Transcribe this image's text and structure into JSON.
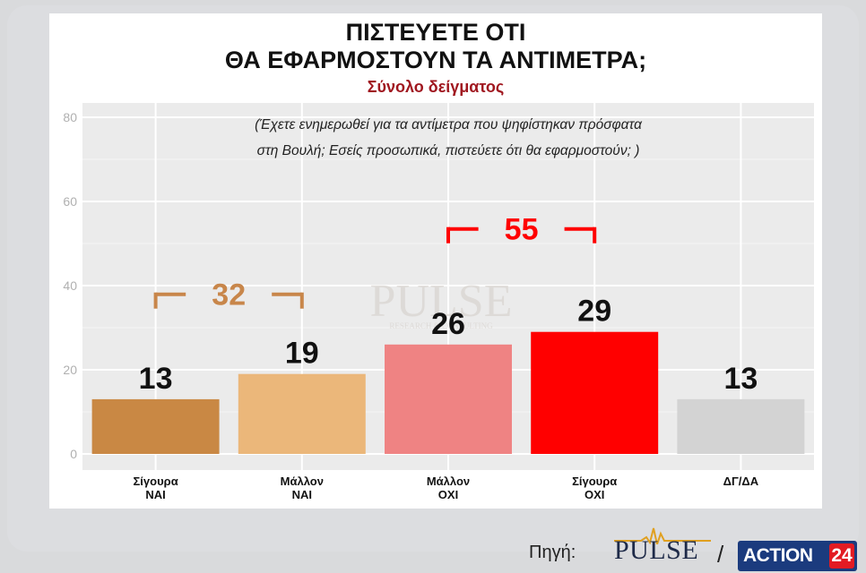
{
  "header": {
    "title_line1": "ΠΙΣΤΕΥΕΤΕ ΟΤΙ",
    "title_line2": "ΘΑ ΕΦΑΡΜΟΣΤΟΥΝ ΤΑ ΑΝΤΙΜΕΤΡΑ;",
    "subtitle": "Σύνολο δείγματος"
  },
  "question": {
    "line1": "(Έχετε ενημερωθεί για τα αντίμετρα που ψηφίστηκαν πρόσφατα",
    "line2": "στη Βουλή; Εσείς προσωπικά, πιστεύετε ότι θα εφαρμοστούν; )"
  },
  "chart_data": {
    "type": "bar",
    "categories": [
      [
        "Σίγουρα",
        "ΝΑΙ"
      ],
      [
        "Μάλλον",
        "ΝΑΙ"
      ],
      [
        "Μάλλον",
        "ΟΧΙ"
      ],
      [
        "Σίγουρα",
        "ΟΧΙ"
      ],
      [
        "ΔΓ/ΔΑ"
      ]
    ],
    "values": [
      13,
      19,
      26,
      29,
      13
    ],
    "data_labels": [
      "13",
      "19",
      "26",
      "29",
      "13"
    ],
    "colors": [
      "#c98844",
      "#ebb77a",
      "#ef8383",
      "#ff0000",
      "#d3d3d3"
    ],
    "ylim": [
      0,
      80
    ],
    "yticks": [
      0,
      20,
      40,
      60,
      80
    ],
    "grid": true,
    "groups": [
      {
        "label": "32",
        "from": 0,
        "to": 1,
        "color": "#c8864a"
      },
      {
        "label": "55",
        "from": 2,
        "to": 3,
        "color": "#ff0000"
      }
    ]
  },
  "watermark": {
    "brand": "PULSE",
    "tagline": "RESEARCH & CONSULTING"
  },
  "footer": {
    "source_label": "Πηγή:",
    "pulse_brand": "PULSE",
    "separator": "/",
    "partner_name": "ACTION",
    "partner_number": "24",
    "partner_color": "#1b3b7e",
    "partner_accent": "#e21b23"
  }
}
